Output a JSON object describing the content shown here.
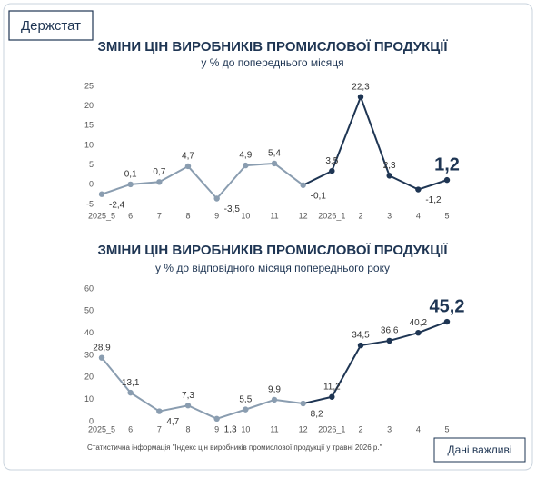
{
  "logo": "Держстат",
  "source": "Статистична інформація \"Індекс цін виробників промислової продукції у травні 2026 р.\"",
  "tagline": "Дані важливі",
  "chart_data": [
    {
      "type": "line",
      "title": "ЗМІНИ ЦІН ВИРОБНИКІВ ПРОМИСЛОВОЇ ПРОДУКЦІЇ",
      "subtitle": "у % до попереднього місяця",
      "categories": [
        "2025_5",
        "6",
        "7",
        "8",
        "9",
        "10",
        "11",
        "12",
        "2026_1",
        "2",
        "3",
        "4",
        "5"
      ],
      "series": [
        {
          "values": [
            -2.4,
            0.1,
            0.7,
            4.7,
            -3.5,
            4.9,
            5.4,
            -0.1,
            3.5,
            22.3,
            2.3,
            -1.2,
            1.2
          ],
          "value_labels": [
            "-2,4",
            "0,1",
            "0,7",
            "4,7",
            "-3,5",
            "4,9",
            "5,4",
            "-0,1",
            "3,5",
            "22,3",
            "2,3",
            "-1,2",
            "1,2"
          ],
          "colors": [
            "#8a9db0",
            "#8a9db0",
            "#8a9db0",
            "#8a9db0",
            "#8a9db0",
            "#8a9db0",
            "#8a9db0",
            "#8a9db0",
            "#1e3553",
            "#1e3553",
            "#1e3553",
            "#1e3553",
            "#1e3553"
          ]
        }
      ],
      "ylim": [
        -5,
        25
      ],
      "yticks": [
        -5,
        0,
        5,
        10,
        15,
        20,
        25
      ]
    },
    {
      "type": "line",
      "title": "ЗМІНИ ЦІН ВИРОБНИКІВ ПРОМИСЛОВОЇ ПРОДУКЦІЇ",
      "subtitle": "у % до відповідного місяця попереднього року",
      "categories": [
        "2025_5",
        "6",
        "7",
        "8",
        "9",
        "10",
        "11",
        "12",
        "2026_1",
        "2",
        "3",
        "4",
        "5"
      ],
      "series": [
        {
          "values": [
            28.9,
            13.1,
            4.7,
            7.3,
            1.3,
            5.5,
            9.9,
            8.2,
            11.2,
            34.5,
            36.6,
            40.2,
            45.2
          ],
          "value_labels": [
            "28,9",
            "13,1",
            "4,7",
            "7,3",
            "1,3",
            "5,5",
            "9,9",
            "8,2",
            "11,2",
            "34,5",
            "36,6",
            "40,2",
            "45,2"
          ],
          "colors": [
            "#8a9db0",
            "#8a9db0",
            "#8a9db0",
            "#8a9db0",
            "#8a9db0",
            "#8a9db0",
            "#8a9db0",
            "#8a9db0",
            "#1e3553",
            "#1e3553",
            "#1e3553",
            "#1e3553",
            "#1e3553"
          ]
        }
      ],
      "ylim": [
        0,
        60
      ],
      "yticks": [
        0,
        10,
        20,
        30,
        40,
        50,
        60
      ]
    }
  ]
}
